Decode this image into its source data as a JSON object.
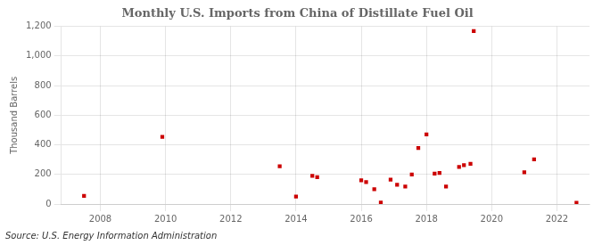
{
  "chart_data": {
    "type": "scatter",
    "title": "Monthly U.S. Imports from China of Distillate Fuel Oil",
    "ylabel": "Thousand Barrels",
    "annotations": [
      "Source: U.S. Energy Information Administration"
    ],
    "color": "#cc0000",
    "marker": "square",
    "grid": true,
    "xlim": [
      2006.8,
      2023.0
    ],
    "ylim": [
      0,
      1200
    ],
    "xticks": [
      2008,
      2010,
      2012,
      2014,
      2016,
      2018,
      2020,
      2022
    ],
    "yticks": [
      0,
      200,
      400,
      600,
      800,
      {
        "value": 1000,
        "label": "1,000"
      },
      {
        "value": 1200,
        "label": "1,200"
      }
    ],
    "x": [
      2007.5,
      2009.9,
      2013.5,
      2014.0,
      2014.5,
      2014.65,
      2016.0,
      2016.15,
      2016.4,
      2016.6,
      2016.9,
      2017.1,
      2017.35,
      2017.55,
      2017.75,
      2018.0,
      2018.25,
      2018.4,
      2018.6,
      2019.0,
      2019.15,
      2019.35,
      2019.45,
      2021.0,
      2021.3,
      2022.6
    ],
    "values": [
      55,
      453,
      255,
      50,
      190,
      182,
      160,
      148,
      100,
      10,
      165,
      130,
      118,
      200,
      378,
      470,
      205,
      210,
      118,
      250,
      262,
      272,
      1168,
      215,
      302,
      8
    ]
  }
}
